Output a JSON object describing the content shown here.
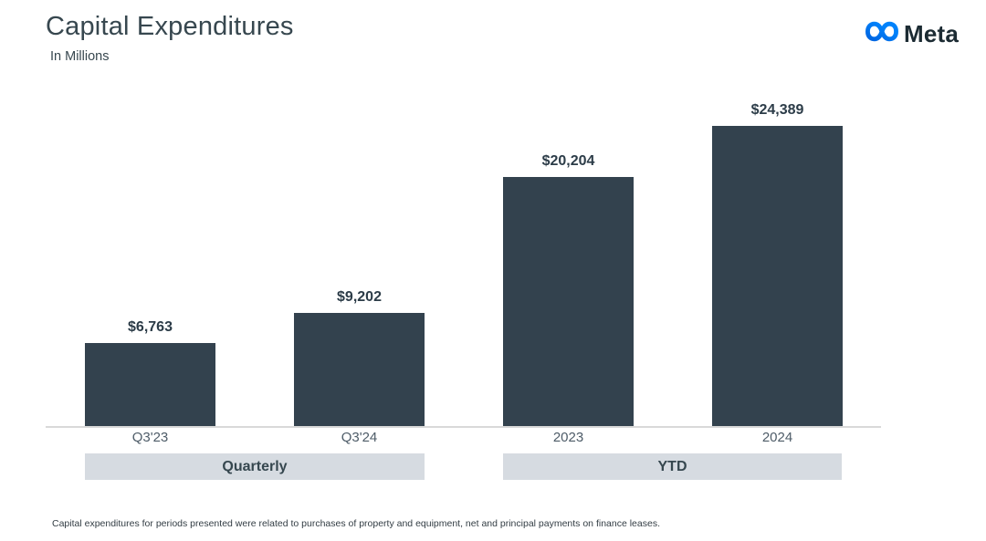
{
  "header": {
    "title": "Capital Expenditures",
    "subtitle": "In Millions"
  },
  "logo": {
    "brand": "Meta",
    "icon_gradient_start": "#0064E0",
    "icon_gradient_end": "#0082FB",
    "wordmark_color": "#1C2B33"
  },
  "chart_data": {
    "type": "bar",
    "title": "Capital Expenditures",
    "ylabel": "In Millions",
    "categories": [
      "Q3'23",
      "Q3'24",
      "2023",
      "2024"
    ],
    "values": [
      6763,
      9202,
      20204,
      24389
    ],
    "value_labels": [
      "$6,763",
      "$9,202",
      "$20,204",
      "$24,389"
    ],
    "groups": [
      {
        "label": "Quarterly",
        "bars": [
          0,
          1
        ]
      },
      {
        "label": "YTD",
        "bars": [
          2,
          3
        ]
      }
    ],
    "ylim": [
      0,
      27200
    ],
    "grid": false,
    "legend": false,
    "bar_color": "#33424E",
    "band_color": "#D6DBE1",
    "axis_line_color": "#D9D9D9"
  },
  "footnote": "Capital expenditures for periods presented were related to purchases of property and equipment, net and principal payments on finance leases."
}
